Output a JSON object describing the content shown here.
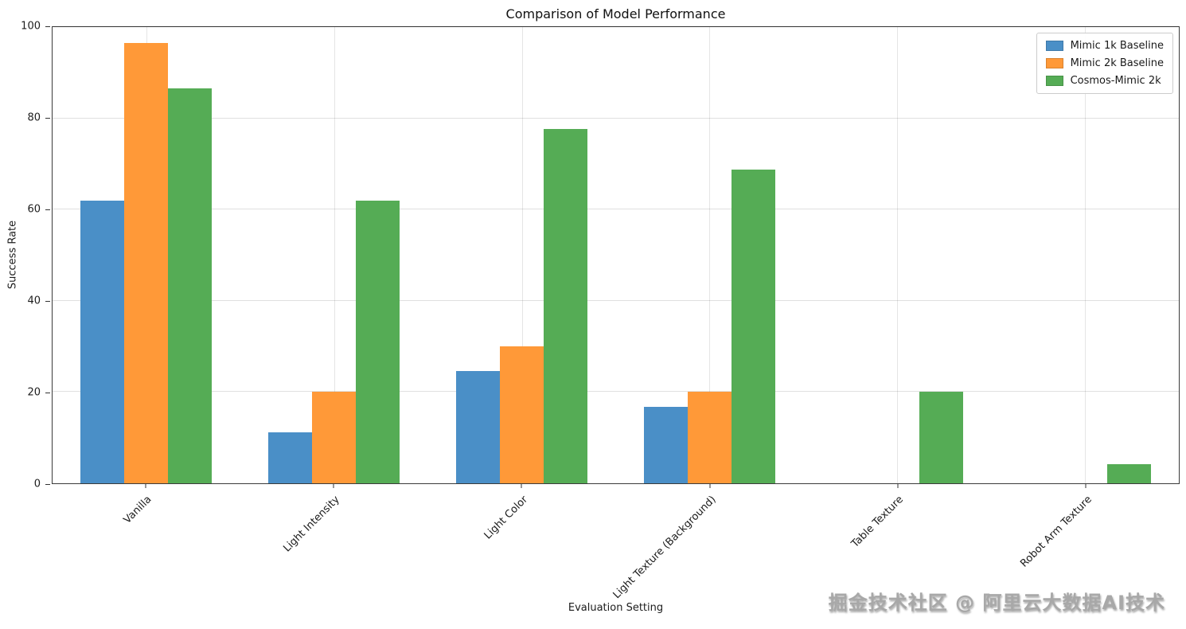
{
  "chart_data": {
    "type": "bar",
    "title": "Comparison of Model Performance",
    "xlabel": "Evaluation Setting",
    "ylabel": "Success Rate",
    "ylim": [
      0,
      100
    ],
    "yticks": [
      0,
      20,
      40,
      60,
      80,
      100
    ],
    "grid": true,
    "legend_position": "upper right",
    "categories": [
      "Vanilla",
      "Light Intensity",
      "Light Color",
      "Light Texture (Background)",
      "Table Texture",
      "Robot Arm Texture"
    ],
    "series": [
      {
        "name": "Mimic 1k Baseline",
        "color": "#4a8fc7",
        "values": [
          62.0,
          11.1,
          24.6,
          16.7,
          0,
          0
        ]
      },
      {
        "name": "Mimic 2k Baseline",
        "color": "#ff9938",
        "values": [
          96.5,
          20.0,
          30.0,
          20.0,
          0,
          0
        ]
      },
      {
        "name": "Cosmos-Mimic 2k",
        "color": "#55ac55",
        "values": [
          86.5,
          62.0,
          77.6,
          68.8,
          20.0,
          4.2
        ]
      }
    ]
  },
  "watermark": "掘金技术社区 @ 阿里云大数据AI技术"
}
